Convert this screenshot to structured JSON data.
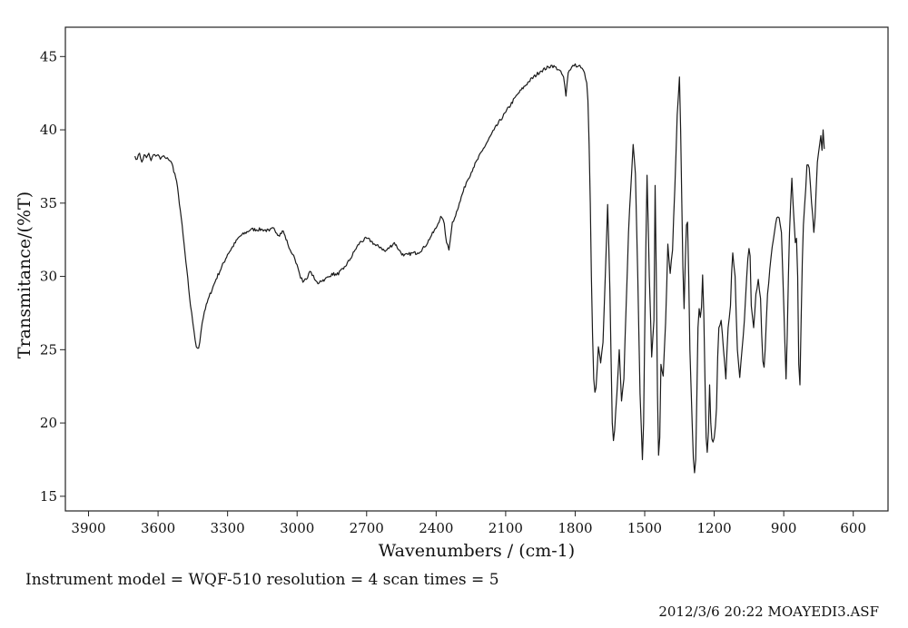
{
  "chart_data": {
    "type": "line",
    "title": "",
    "xlabel": "Wavenumbers / (cm-1)",
    "ylabel": "Transmitance/(%T)",
    "xlim": [
      4000,
      450
    ],
    "ylim": [
      14,
      47
    ],
    "x_reversed": true,
    "grid": false,
    "x_ticks": [
      3900,
      3600,
      3300,
      3000,
      2700,
      2400,
      2100,
      1800,
      1500,
      1200,
      900,
      600
    ],
    "y_ticks": [
      15,
      20,
      25,
      30,
      35,
      40,
      45
    ],
    "line_color": "#1a1a1a",
    "series": [
      {
        "x": [
          3700,
          3690,
          3680,
          3670,
          3660,
          3650,
          3640,
          3630,
          3620,
          3610,
          3600,
          3590,
          3580,
          3570,
          3560,
          3550,
          3540,
          3520,
          3500,
          3480,
          3460,
          3445,
          3435,
          3425,
          3420,
          3415,
          3410,
          3400,
          3380,
          3350,
          3300,
          3250,
          3200,
          3150,
          3120,
          3100,
          3080,
          3060,
          3040,
          3030,
          3020,
          3010,
          3000,
          2990,
          2975,
          2960,
          2950,
          2940,
          2925,
          2910,
          2900,
          2880,
          2860,
          2850,
          2830,
          2800,
          2770,
          2750,
          2730,
          2700,
          2680,
          2660,
          2640,
          2620,
          2600,
          2580,
          2560,
          2540,
          2520,
          2500,
          2480,
          2450,
          2420,
          2400,
          2380,
          2365,
          2355,
          2345,
          2335,
          2330,
          2320,
          2300,
          2270,
          2240,
          2200,
          2150,
          2100,
          2050,
          2000,
          1950,
          1900,
          1870,
          1850,
          1840,
          1830,
          1820,
          1810,
          1800,
          1790,
          1780,
          1770,
          1760,
          1750,
          1745,
          1740,
          1735,
          1730,
          1725,
          1720,
          1715,
          1710,
          1700,
          1690,
          1680,
          1670,
          1660,
          1650,
          1640,
          1635,
          1630,
          1620,
          1610,
          1600,
          1590,
          1580,
          1570,
          1560,
          1550,
          1540,
          1530,
          1520,
          1510,
          1505,
          1500,
          1495,
          1490,
          1480,
          1470,
          1460,
          1455,
          1450,
          1445,
          1440,
          1435,
          1430,
          1420,
          1410,
          1400,
          1390,
          1380,
          1370,
          1360,
          1350,
          1345,
          1340,
          1335,
          1330,
          1325,
          1320,
          1315,
          1310,
          1305,
          1300,
          1295,
          1290,
          1285,
          1280,
          1275,
          1270,
          1265,
          1260,
          1255,
          1250,
          1245,
          1240,
          1235,
          1230,
          1225,
          1220,
          1215,
          1210,
          1205,
          1200,
          1195,
          1190,
          1185,
          1180,
          1170,
          1160,
          1150,
          1140,
          1130,
          1125,
          1120,
          1110,
          1100,
          1090,
          1080,
          1070,
          1060,
          1055,
          1050,
          1045,
          1040,
          1030,
          1020,
          1010,
          1000,
          995,
          990,
          985,
          980,
          975,
          970,
          960,
          950,
          940,
          930,
          920,
          910,
          900,
          890,
          885,
          880,
          875,
          870,
          865,
          860,
          850,
          845,
          840,
          835,
          830,
          825,
          820,
          815,
          810,
          805,
          800,
          790,
          780,
          770,
          765,
          760,
          755,
          750,
          745,
          740,
          735,
          730,
          725
        ],
        "y": [
          38.2,
          38.0,
          38.4,
          37.8,
          38.3,
          38.1,
          38.4,
          37.9,
          38.3,
          38.2,
          38.3,
          38.0,
          38.2,
          38.1,
          38.1,
          37.9,
          37.7,
          36.5,
          34.0,
          31.0,
          28.0,
          26.3,
          25.2,
          25.1,
          25.5,
          26.2,
          26.8,
          27.6,
          28.6,
          29.8,
          31.5,
          32.7,
          33.2,
          33.2,
          33.1,
          33.3,
          32.8,
          33.1,
          32.2,
          31.8,
          31.5,
          31.2,
          30.8,
          30.2,
          29.6,
          29.8,
          30.2,
          30.3,
          29.8,
          29.5,
          29.7,
          29.8,
          30.0,
          30.2,
          30.1,
          30.5,
          31.2,
          31.8,
          32.3,
          32.6,
          32.4,
          32.1,
          32.0,
          31.7,
          32.0,
          32.3,
          31.8,
          31.4,
          31.5,
          31.6,
          31.6,
          32.0,
          32.8,
          33.3,
          34.1,
          33.6,
          32.3,
          31.8,
          33.0,
          33.7,
          34.0,
          35.0,
          36.4,
          37.4,
          38.6,
          40.0,
          41.2,
          42.4,
          43.3,
          44.0,
          44.4,
          44.1,
          43.6,
          42.3,
          43.9,
          44.1,
          44.4,
          44.5,
          44.3,
          44.4,
          44.2,
          43.9,
          43.2,
          42.0,
          39.0,
          35.0,
          30.0,
          26.0,
          23.0,
          22.1,
          22.4,
          25.2,
          24.1,
          25.5,
          30.0,
          34.9,
          29.0,
          20.0,
          18.8,
          19.5,
          22.0,
          25.0,
          21.5,
          23.0,
          28.0,
          33.0,
          36.0,
          39.0,
          37.0,
          30.0,
          22.0,
          17.5,
          20.0,
          26.0,
          32.0,
          36.9,
          30.0,
          24.5,
          27.0,
          36.2,
          30.0,
          22.0,
          17.8,
          19.0,
          24.0,
          23.2,
          26.8,
          32.2,
          30.2,
          31.8,
          36.0,
          41.0,
          43.6,
          40.0,
          35.0,
          30.6,
          27.8,
          31.0,
          33.5,
          33.7,
          30.0,
          25.0,
          22.4,
          20.0,
          17.6,
          16.6,
          17.5,
          22.0,
          26.5,
          27.8,
          27.2,
          27.9,
          30.1,
          27.5,
          23.0,
          19.0,
          18.0,
          19.4,
          22.6,
          20.0,
          18.9,
          18.7,
          19.0,
          19.8,
          21.0,
          24.5,
          26.5,
          27.0,
          25.0,
          23.0,
          26.5,
          28.0,
          30.2,
          31.6,
          30.0,
          25.0,
          23.1,
          25.0,
          27.0,
          29.9,
          31.2,
          31.9,
          31.4,
          28.0,
          26.5,
          28.8,
          29.8,
          28.5,
          26.0,
          24.2,
          23.8,
          25.0,
          27.0,
          28.8,
          30.5,
          32.0,
          33.0,
          34.0,
          34.0,
          33.0,
          28.0,
          23.0,
          26.0,
          30.0,
          33.0,
          35.0,
          36.7,
          35.0,
          32.3,
          32.6,
          30.0,
          24.0,
          22.6,
          27.0,
          31.0,
          33.5,
          34.8,
          36.0,
          37.6,
          37.4,
          35.0,
          33.0,
          34.0,
          36.0,
          37.8,
          38.4,
          39.0,
          39.6,
          38.6,
          40.0,
          38.7
        ],
        "noise": 0.12
      }
    ]
  },
  "footer": {
    "instrument": "Instrument model = WQF-510 resolution = 4 scan times = 5",
    "stamp": "2012/3/6 20:22 MOAYEDI3.ASF"
  }
}
